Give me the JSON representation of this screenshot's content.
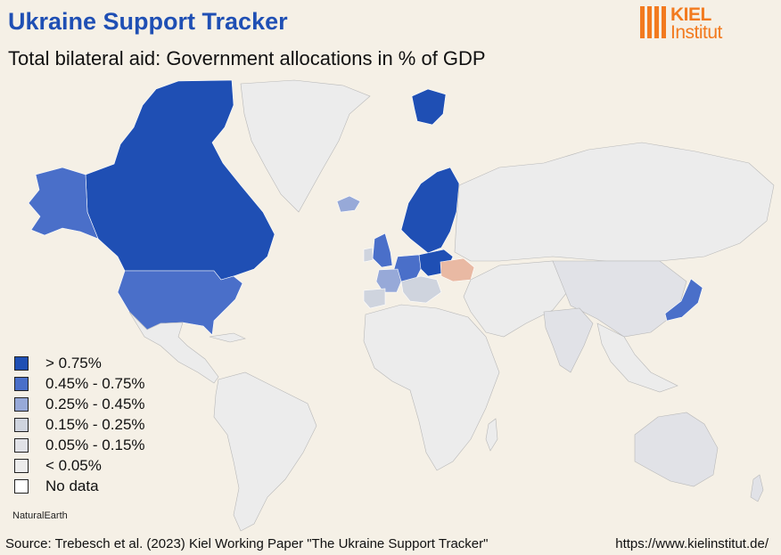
{
  "header": {
    "title": "Ukraine Support Tracker",
    "subtitle": "Total bilateral aid: Government allocations in % of GDP"
  },
  "logo": {
    "line1": "KIEL",
    "line2": "Institut",
    "color": "#f27a1f"
  },
  "colors": {
    "gt075": "#1f4fb4",
    "c045_075": "#4a6fc9",
    "c025_045": "#97a9d8",
    "c015_025": "#cfd4de",
    "c005_015": "#e1e2e7",
    "lt005": "#ececec",
    "nodata": "#ffffff",
    "recipient": "#e9b9a3",
    "ocean": "#f5f0e6"
  },
  "legend": {
    "items": [
      {
        "label": "> 0.75%",
        "color": "#1f4fb4"
      },
      {
        "label": "0.45% - 0.75%",
        "color": "#4a6fc9"
      },
      {
        "label": "0.25% - 0.45%",
        "color": "#97a9d8"
      },
      {
        "label": "0.15% - 0.25%",
        "color": "#cfd4de"
      },
      {
        "label": "0.05% - 0.15%",
        "color": "#e1e2e7"
      },
      {
        "label": "< 0.05%",
        "color": "#ececec"
      },
      {
        "label": "No data",
        "color": "#ffffff"
      }
    ]
  },
  "footer": {
    "credit": "NaturalEarth",
    "source": "Source: Trebesch et al. (2023) Kiel Working Paper \"The Ukraine Support Tracker\"",
    "url": "https://www.kielinstitut.de/"
  }
}
